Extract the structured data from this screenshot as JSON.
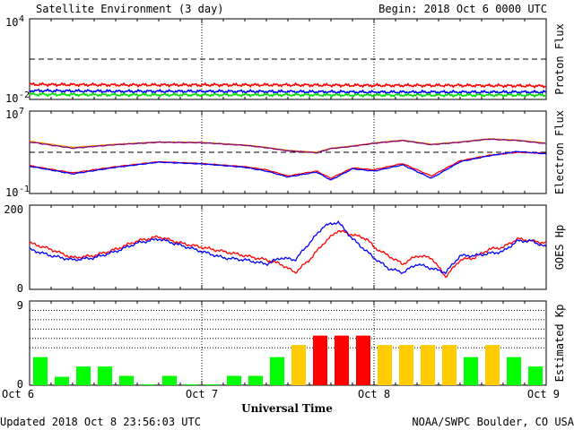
{
  "header": {
    "title": "Satellite Environment (3 day)",
    "begin": "Begin:  2018 Oct 6 0000 UTC"
  },
  "footer": {
    "updated": "Updated 2018 Oct  8 23:56:03 UTC",
    "credit": "NOAA/SWPC Boulder, CO USA"
  },
  "chart_data": {
    "type": "multi-panel",
    "xlabel": "Universal Time",
    "x_ticks": [
      "Oct 6",
      "Oct 7",
      "Oct 8",
      "Oct 9"
    ],
    "x_range_hours": [
      0,
      72
    ],
    "grid_vertical_at_hours": [
      24,
      48
    ],
    "panels": [
      {
        "id": "proton",
        "type": "line",
        "ylabel": "Proton Flux",
        "scale": "log",
        "ylim": [
          0.01,
          10000
        ],
        "y_ticks": [
          {
            "base": "10",
            "exp": "4",
            "value": 10000
          },
          {
            "base": "10",
            "exp": "-2",
            "value": 0.01
          }
        ],
        "threshold": 10,
        "series": [
          {
            "color": "#ff0000",
            "x": [
              0,
              12,
              24,
              36,
              48,
              60,
              72
            ],
            "y": [
              0.13,
              0.12,
              0.12,
              0.12,
              0.11,
              0.11,
              0.1
            ]
          },
          {
            "color": "#0000ff",
            "x": [
              0,
              12,
              24,
              36,
              48,
              60,
              72
            ],
            "y": [
              0.045,
              0.04,
              0.04,
              0.038,
              0.035,
              0.035,
              0.035
            ]
          },
          {
            "color": "#00e000",
            "x": [
              0,
              12,
              24,
              36,
              48,
              60,
              72
            ],
            "y": [
              0.024,
              0.022,
              0.022,
              0.022,
              0.021,
              0.021,
              0.021
            ]
          }
        ]
      },
      {
        "id": "electron",
        "type": "line",
        "ylabel": "Electron Flux",
        "scale": "log",
        "ylim": [
          0.1,
          10000000
        ],
        "y_ticks": [
          {
            "base": "10",
            "exp": "7",
            "value": 10000000
          },
          {
            "base": "10",
            "exp": "-1",
            "value": 0.1
          }
        ],
        "threshold": 1000,
        "series": [
          {
            "color": "#ffa500",
            "x": [
              0,
              6,
              12,
              18,
              24,
              30,
              33,
              36,
              40,
              42,
              45,
              48,
              52,
              56,
              60,
              64,
              68,
              72
            ],
            "y": [
              12000,
              3000,
              6000,
              10000,
              9000,
              5000,
              3000,
              1500,
              1000,
              2500,
              4000,
              8000,
              15000,
              6000,
              10000,
              20000,
              15000,
              8000
            ]
          },
          {
            "color": "#800080",
            "x": [
              0,
              6,
              12,
              18,
              24,
              30,
              33,
              36,
              40,
              42,
              45,
              48,
              52,
              56,
              60,
              64,
              68,
              72
            ],
            "y": [
              10000,
              2500,
              5500,
              9500,
              8500,
              4800,
              2800,
              1400,
              900,
              2300,
              3800,
              7500,
              14000,
              5500,
              9500,
              19000,
              14000,
              7000
            ]
          },
          {
            "color": "#ff0000",
            "x": [
              0,
              6,
              12,
              18,
              24,
              30,
              33,
              36,
              40,
              42,
              45,
              48,
              52,
              56,
              60,
              64,
              68,
              72
            ],
            "y": [
              50,
              10,
              40,
              120,
              80,
              40,
              20,
              5,
              15,
              3,
              30,
              20,
              80,
              5,
              150,
              500,
              1000,
              800
            ]
          },
          {
            "color": "#0000ff",
            "x": [
              0,
              6,
              12,
              18,
              24,
              30,
              33,
              36,
              40,
              42,
              45,
              48,
              52,
              56,
              60,
              64,
              68,
              72
            ],
            "y": [
              45,
              8,
              35,
              110,
              75,
              35,
              15,
              4,
              12,
              2,
              25,
              15,
              60,
              3,
              120,
              450,
              1200,
              700
            ]
          }
        ]
      },
      {
        "id": "hp",
        "type": "line",
        "ylabel": "GOES Hp",
        "scale": "linear",
        "ylim": [
          0,
          200
        ],
        "y_ticks": [
          {
            "label": "200",
            "value": 200
          },
          {
            "label": "0",
            "value": 0
          }
        ],
        "series": [
          {
            "color": "#ff0000",
            "x": [
              0,
              3,
              6,
              9,
              12,
              15,
              18,
              21,
              24,
              27,
              30,
              33,
              35,
              37,
              39,
              41,
              43,
              45,
              47,
              48,
              50,
              52,
              54,
              56,
              58,
              60,
              62,
              64,
              66,
              68,
              70,
              72
            ],
            "y": [
              110,
              95,
              75,
              80,
              95,
              115,
              125,
              110,
              100,
              90,
              80,
              70,
              60,
              40,
              70,
              110,
              140,
              130,
              120,
              100,
              80,
              60,
              80,
              75,
              30,
              70,
              75,
              95,
              100,
              120,
              115,
              110
            ]
          },
          {
            "color": "#0000ff",
            "x": [
              0,
              3,
              6,
              9,
              12,
              15,
              18,
              21,
              24,
              27,
              30,
              33,
              35,
              37,
              39,
              41,
              43,
              45,
              47,
              48,
              50,
              52,
              54,
              56,
              58,
              60,
              62,
              64,
              66,
              68,
              70,
              72
            ],
            "y": [
              95,
              80,
              70,
              75,
              90,
              110,
              120,
              105,
              90,
              75,
              70,
              60,
              75,
              70,
              110,
              150,
              160,
              120,
              90,
              75,
              50,
              40,
              60,
              50,
              40,
              80,
              80,
              85,
              90,
              115,
              115,
              100
            ]
          }
        ]
      },
      {
        "id": "kp",
        "type": "bar",
        "ylabel": "Estimated Kp",
        "scale": "linear",
        "ylim": [
          0,
          9
        ],
        "y_ticks": [
          {
            "label": "9",
            "value": 9
          },
          {
            "label": "0",
            "value": 0
          }
        ],
        "dotted_levels": [
          4,
          5,
          6,
          7,
          8
        ],
        "bar_hours": 3,
        "values": [
          3,
          0.9,
          2,
          2,
          1,
          0.1,
          1,
          0.1,
          0.1,
          1,
          1,
          3,
          4.3,
          5.3,
          5.3,
          5.3,
          4.3,
          4.3,
          4.3,
          4.3,
          3,
          4.3,
          3,
          2
        ],
        "colors": {
          "quiet": "#00ff00",
          "active": "#ffcc00",
          "storm": "#ff0000"
        }
      }
    ]
  }
}
